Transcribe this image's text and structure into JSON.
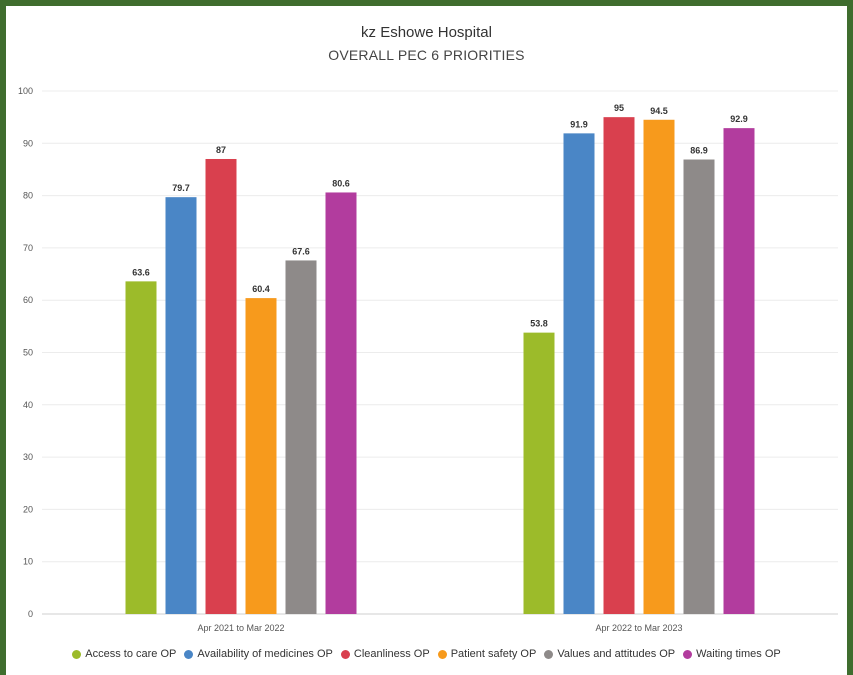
{
  "chart_data": {
    "type": "bar",
    "title": "kz Eshowe Hospital",
    "subtitle": "OVERALL PEC 6 PRIORITIES",
    "categories": [
      "Apr 2021 to Mar 2022",
      "Apr 2022 to Mar 2023"
    ],
    "series": [
      {
        "name": "Access to care OP",
        "color": "#9cbb2a",
        "values": [
          63.6,
          53.8
        ]
      },
      {
        "name": "Availability of medicines OP",
        "color": "#4a86c6",
        "values": [
          79.7,
          91.9
        ]
      },
      {
        "name": "Cleanliness OP",
        "color": "#d9404e",
        "values": [
          87,
          95
        ]
      },
      {
        "name": "Patient safety OP",
        "color": "#f79a1c",
        "values": [
          60.4,
          94.5
        ]
      },
      {
        "name": "Values and attitudes OP",
        "color": "#8e8a89",
        "values": [
          67.6,
          86.9
        ]
      },
      {
        "name": "Waiting times OP",
        "color": "#b23c9e",
        "values": [
          80.6,
          92.9
        ]
      }
    ],
    "yticks": [
      0,
      10,
      20,
      30,
      40,
      50,
      60,
      70,
      80,
      90,
      100
    ],
    "ylim": [
      0,
      100
    ],
    "grid": true,
    "legend_position": "bottom"
  }
}
